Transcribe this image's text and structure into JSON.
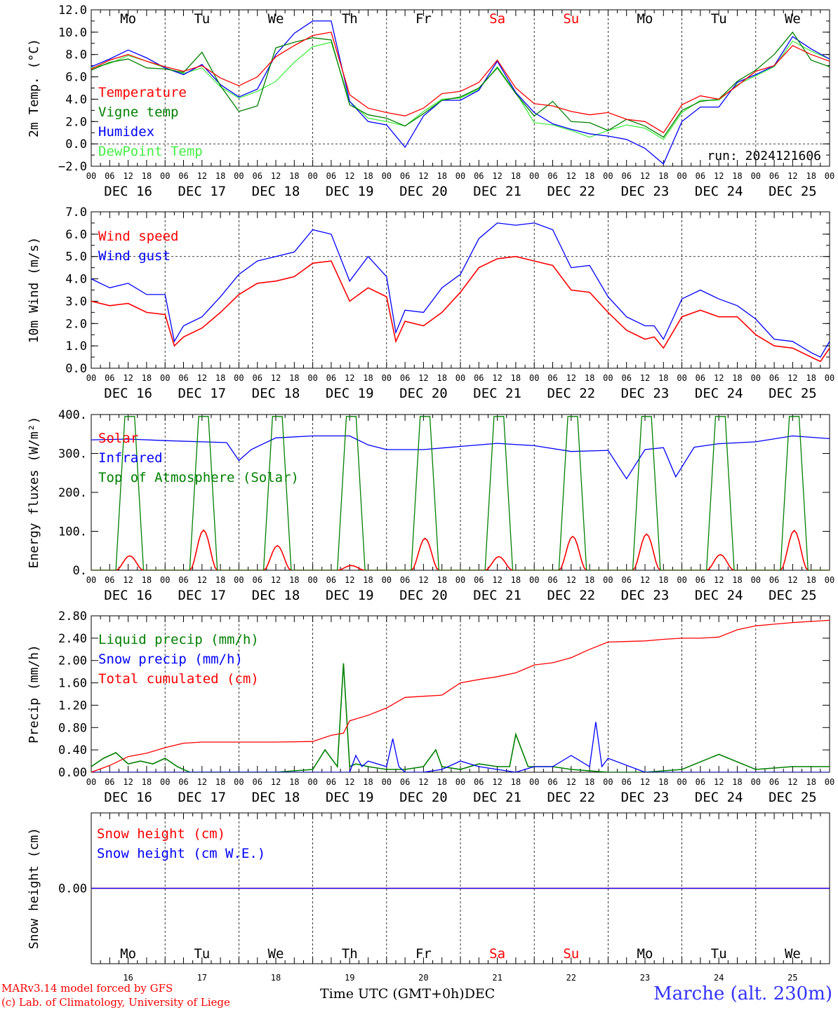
{
  "day_abbrevs": [
    "Mo",
    "Tu",
    "We",
    "Th",
    "Fr",
    "Sa",
    "Su",
    "Mo",
    "Tu",
    "We"
  ],
  "day_colors": [
    "#000000",
    "#000000",
    "#000000",
    "#000000",
    "#000000",
    "#ff0000",
    "#ff0000",
    "#000000",
    "#000000",
    "#000000"
  ],
  "date_labels": [
    "DEC 16",
    "DEC 17",
    "DEC 18",
    "DEC 19",
    "DEC 20",
    "DEC 21",
    "DEC 22",
    "DEC 23",
    "DEC 24",
    "DEC 25"
  ],
  "day_numbers": [
    "16",
    "17",
    "18",
    "19",
    "20",
    "21",
    "22",
    "23",
    "24",
    "25"
  ],
  "hour_ticks": [
    "00",
    "06",
    "12",
    "18"
  ],
  "last_hour_tick": "00",
  "run_label": "run: 2024121606",
  "footer": {
    "model": "MARv3.14 model forced by GFS",
    "credit": "(c) Lab. of Climatology, University of Liege",
    "time_axis": "Time UTC (GMT+0h)",
    "month": "DEC",
    "station": "Marche (alt. 230m)"
  },
  "chart_data": [
    {
      "type": "line",
      "ylabel": "2m Temp. (°C)",
      "ylim": [
        -2,
        12
      ],
      "yticks": [
        "12.0",
        "10.0",
        "8.0",
        "6.0",
        "4.0",
        "2.0",
        "0.0",
        "−2.0"
      ],
      "ytick_values": [
        12,
        10,
        8,
        6,
        4,
        2,
        0,
        -2
      ],
      "reference_line": 0,
      "x_unit": "hours since DEC 16 00 UTC",
      "xlim": [
        0,
        240
      ],
      "series": [
        {
          "name": "Temperature",
          "color": "#ff0000",
          "x": [
            0,
            6,
            12,
            18,
            24,
            30,
            36,
            42,
            48,
            54,
            60,
            66,
            72,
            78,
            84,
            90,
            96,
            102,
            108,
            114,
            120,
            126,
            132,
            138,
            144,
            150,
            156,
            162,
            168,
            174,
            180,
            186,
            192,
            198,
            204,
            210,
            216,
            222,
            228,
            234,
            240
          ],
          "values": [
            6.7,
            7.5,
            8.0,
            7.4,
            6.9,
            6.5,
            7.0,
            5.9,
            5.2,
            6.0,
            7.8,
            8.8,
            9.7,
            10.0,
            4.4,
            3.2,
            2.8,
            2.5,
            3.2,
            4.5,
            4.7,
            5.5,
            7.5,
            5.0,
            3.6,
            3.4,
            2.9,
            2.6,
            2.8,
            2.2,
            2.0,
            1.0,
            3.5,
            4.3,
            4.0,
            5.2,
            6.5,
            7.0,
            8.8,
            8.0,
            7.4
          ]
        },
        {
          "name": "Vigne temp",
          "color": "#008000",
          "x": [
            0,
            6,
            12,
            18,
            24,
            30,
            36,
            42,
            48,
            54,
            60,
            66,
            72,
            78,
            84,
            90,
            96,
            102,
            108,
            114,
            120,
            126,
            132,
            138,
            144,
            150,
            156,
            162,
            168,
            174,
            180,
            186,
            192,
            198,
            204,
            210,
            216,
            222,
            228,
            234,
            240
          ],
          "values": [
            6.6,
            7.3,
            7.6,
            6.8,
            6.7,
            6.4,
            8.2,
            5.2,
            2.9,
            3.4,
            8.6,
            9.1,
            9.5,
            9.3,
            3.5,
            2.6,
            2.3,
            1.6,
            2.7,
            3.9,
            4.2,
            5.0,
            6.8,
            4.5,
            2.5,
            3.8,
            2.0,
            1.9,
            1.2,
            2.2,
            1.6,
            0.6,
            3.0,
            3.8,
            4.0,
            5.6,
            6.6,
            8.0,
            10.0,
            7.5,
            6.9
          ]
        },
        {
          "name": "Humidex",
          "color": "#0000ff",
          "x": [
            0,
            6,
            12,
            18,
            24,
            30,
            36,
            42,
            48,
            54,
            60,
            66,
            72,
            78,
            84,
            90,
            96,
            102,
            108,
            114,
            120,
            126,
            132,
            138,
            144,
            150,
            156,
            162,
            168,
            174,
            180,
            186,
            192,
            198,
            204,
            210,
            216,
            222,
            228,
            234,
            240
          ],
          "values": [
            6.9,
            7.6,
            8.4,
            7.7,
            6.8,
            6.2,
            7.1,
            5.3,
            4.2,
            4.9,
            8.0,
            9.9,
            11.0,
            11.0,
            3.8,
            2.0,
            1.7,
            -0.3,
            2.5,
            3.9,
            3.9,
            4.8,
            7.4,
            4.6,
            2.8,
            1.8,
            1.3,
            0.9,
            0.7,
            0.4,
            -0.4,
            -1.8,
            2.0,
            3.3,
            3.3,
            5.5,
            6.2,
            7.0,
            9.6,
            8.5,
            7.6
          ]
        },
        {
          "name": "DewPoint Temp",
          "color": "#44ee44",
          "x": [
            0,
            6,
            12,
            18,
            24,
            30,
            36,
            42,
            48,
            54,
            60,
            66,
            72,
            78,
            84,
            90,
            96,
            102,
            108,
            114,
            120,
            126,
            132,
            138,
            144,
            150,
            156,
            162,
            168,
            174,
            180,
            186,
            192,
            198,
            204,
            210,
            216,
            222,
            228,
            234,
            240
          ],
          "values": [
            6.8,
            7.2,
            7.9,
            7.4,
            6.8,
            6.3,
            6.8,
            5.1,
            4.1,
            4.7,
            5.6,
            7.3,
            8.7,
            9.1,
            3.8,
            2.3,
            2.0,
            1.6,
            2.9,
            4.0,
            4.1,
            4.9,
            6.9,
            4.6,
            1.9,
            1.7,
            1.2,
            0.6,
            1.2,
            1.7,
            1.4,
            0.4,
            2.8,
            3.9,
            3.9,
            5.3,
            6.1,
            6.9,
            9.2,
            8.3,
            7.6
          ]
        }
      ]
    },
    {
      "type": "line",
      "ylabel": "10m Wind (m/s)",
      "ylim": [
        0,
        7
      ],
      "yticks": [
        "7.0",
        "6.0",
        "5.0",
        "4.0",
        "3.0",
        "2.0",
        "1.0",
        "0.0"
      ],
      "ytick_values": [
        7,
        6,
        5,
        4,
        3,
        2,
        1,
        0
      ],
      "reference_line": 5,
      "x_unit": "hours since DEC 16 00 UTC",
      "xlim": [
        0,
        240
      ],
      "series": [
        {
          "name": "Wind speed",
          "color": "#ff0000",
          "x": [
            0,
            6,
            12,
            18,
            24,
            27,
            30,
            36,
            42,
            48,
            54,
            60,
            66,
            72,
            78,
            84,
            90,
            96,
            99,
            102,
            108,
            114,
            120,
            126,
            132,
            138,
            144,
            150,
            156,
            162,
            168,
            174,
            180,
            183,
            186,
            192,
            198,
            204,
            210,
            216,
            222,
            228,
            234,
            237,
            240
          ],
          "values": [
            3.0,
            2.8,
            2.9,
            2.5,
            2.4,
            1.0,
            1.4,
            1.8,
            2.5,
            3.3,
            3.8,
            3.9,
            4.1,
            4.7,
            4.8,
            3.0,
            3.6,
            3.2,
            1.2,
            2.1,
            1.9,
            2.5,
            3.4,
            4.5,
            4.9,
            5.0,
            4.8,
            4.6,
            3.5,
            3.4,
            2.5,
            1.7,
            1.3,
            1.4,
            0.9,
            2.3,
            2.6,
            2.3,
            2.3,
            1.5,
            1.0,
            0.9,
            0.5,
            0.3,
            0.9
          ]
        },
        {
          "name": "Wind gust",
          "color": "#0000ff",
          "x": [
            0,
            6,
            12,
            18,
            24,
            27,
            30,
            36,
            42,
            48,
            54,
            60,
            66,
            72,
            78,
            84,
            90,
            96,
            99,
            102,
            108,
            114,
            120,
            126,
            132,
            138,
            144,
            150,
            156,
            162,
            168,
            174,
            180,
            183,
            186,
            192,
            198,
            204,
            210,
            216,
            222,
            228,
            234,
            237,
            240
          ],
          "values": [
            4.0,
            3.6,
            3.8,
            3.3,
            3.3,
            1.2,
            1.9,
            2.3,
            3.2,
            4.2,
            4.8,
            5.0,
            5.2,
            6.2,
            6.0,
            3.9,
            5.0,
            4.1,
            1.6,
            2.6,
            2.5,
            3.6,
            4.2,
            5.8,
            6.5,
            6.4,
            6.5,
            6.2,
            4.5,
            4.6,
            3.2,
            2.3,
            1.9,
            1.9,
            1.3,
            3.1,
            3.5,
            3.1,
            2.8,
            2.2,
            1.3,
            1.2,
            0.7,
            0.5,
            1.2
          ]
        }
      ]
    },
    {
      "type": "line",
      "ylabel": "Energy fluxes (W/m²)",
      "ylim": [
        0,
        400
      ],
      "yticks": [
        "400.",
        "300.",
        "200.",
        "100.",
        "0."
      ],
      "ytick_values": [
        400,
        300,
        200,
        100,
        0
      ],
      "x_unit": "hours since DEC 16 00 UTC",
      "xlim": [
        0,
        240
      ],
      "series": [
        {
          "name": "Solar",
          "color": "#ff0000",
          "peak_hour": 12.5,
          "half_width_hours": 4.5,
          "daily_peaks": [
            37,
            103,
            63,
            12,
            82,
            35,
            87,
            93,
            40,
            102
          ]
        },
        {
          "name": "Infrared",
          "color": "#0000ff",
          "x": [
            0,
            12,
            24,
            36,
            44,
            48,
            52,
            56,
            60,
            72,
            84,
            90,
            96,
            108,
            120,
            132,
            144,
            156,
            168,
            174,
            180,
            186,
            190,
            196,
            204,
            216,
            228,
            240
          ],
          "values": [
            335,
            337,
            333,
            330,
            328,
            282,
            310,
            325,
            340,
            345,
            345,
            322,
            310,
            310,
            318,
            326,
            320,
            305,
            308,
            235,
            310,
            315,
            240,
            316,
            325,
            330,
            345,
            338
          ]
        },
        {
          "name": "Top of Atmosphere (Solar)",
          "color": "#008000",
          "peak_hour": 12.5,
          "half_width_hours": 4.5,
          "daily_peaks": [
            395,
            395,
            395,
            395,
            395,
            395,
            395,
            395,
            395,
            395
          ]
        }
      ]
    },
    {
      "type": "line",
      "ylabel": "Precip (mm/h)",
      "ylim": [
        0,
        2.8
      ],
      "yticks": [
        "2.80",
        "2.40",
        "2.00",
        "1.60",
        "1.20",
        "0.80",
        "0.40",
        "0.00"
      ],
      "ytick_values": [
        2.8,
        2.4,
        2.0,
        1.6,
        1.2,
        0.8,
        0.4,
        0.0
      ],
      "x_unit": "hours since DEC 16 00 UTC",
      "xlim": [
        0,
        240
      ],
      "series": [
        {
          "name": "Liquid precip (mm/h)",
          "color": "#008000",
          "x": [
            0,
            4,
            8,
            12,
            16,
            20,
            24,
            28,
            32,
            36,
            48,
            60,
            72,
            76,
            80,
            82,
            84,
            86,
            90,
            96,
            102,
            108,
            112,
            114,
            120,
            126,
            132,
            136,
            138,
            142,
            150,
            156,
            168,
            180,
            192,
            204,
            216,
            228,
            240
          ],
          "values": [
            0.1,
            0.25,
            0.35,
            0.15,
            0.2,
            0.15,
            0.25,
            0.1,
            0.0,
            0.0,
            0.0,
            0.0,
            0.05,
            0.4,
            0.1,
            1.95,
            0.1,
            0.15,
            0.1,
            0.05,
            0.05,
            0.1,
            0.4,
            0.1,
            0.05,
            0.15,
            0.1,
            0.1,
            0.68,
            0.1,
            0.1,
            0.05,
            0.0,
            0.0,
            0.05,
            0.32,
            0.05,
            0.1,
            0.1
          ]
        },
        {
          "name": "Snow precip (mm/h)",
          "color": "#0000ff",
          "x": [
            0,
            72,
            84,
            86,
            88,
            90,
            96,
            98,
            100,
            102,
            108,
            114,
            120,
            126,
            132,
            138,
            144,
            150,
            156,
            162,
            164,
            166,
            168,
            180,
            240
          ],
          "values": [
            0.0,
            0.0,
            0.0,
            0.3,
            0.1,
            0.2,
            0.1,
            0.6,
            0.1,
            0.0,
            0.0,
            0.05,
            0.2,
            0.1,
            0.05,
            0.0,
            0.1,
            0.1,
            0.3,
            0.1,
            0.9,
            0.1,
            0.25,
            0.0,
            0.0
          ]
        },
        {
          "name": "Total cumulated (cm)",
          "color": "#ff0000",
          "x": [
            0,
            6,
            12,
            18,
            24,
            30,
            36,
            48,
            60,
            72,
            78,
            82,
            84,
            90,
            96,
            102,
            108,
            114,
            120,
            126,
            132,
            138,
            144,
            150,
            156,
            162,
            168,
            180,
            186,
            192,
            198,
            204,
            210,
            216,
            222,
            228,
            234,
            240
          ],
          "values": [
            0.0,
            0.12,
            0.28,
            0.34,
            0.44,
            0.52,
            0.54,
            0.54,
            0.54,
            0.55,
            0.66,
            0.7,
            0.92,
            1.02,
            1.15,
            1.34,
            1.36,
            1.38,
            1.6,
            1.66,
            1.71,
            1.78,
            1.92,
            1.96,
            2.05,
            2.2,
            2.33,
            2.35,
            2.38,
            2.4,
            2.4,
            2.42,
            2.55,
            2.62,
            2.65,
            2.68,
            2.7,
            2.72
          ]
        }
      ]
    },
    {
      "type": "line",
      "ylabel": "Snow height (cm)",
      "ylim": [
        -1,
        1
      ],
      "yticks": [
        "0.00"
      ],
      "ytick_values": [
        0
      ],
      "x_unit": "hours since DEC 16 00 UTC",
      "xlim": [
        0,
        240
      ],
      "series": [
        {
          "name": "Snow height (cm)",
          "color": "#ff0000",
          "x": [
            0,
            240
          ],
          "values": [
            0,
            0
          ]
        },
        {
          "name": "Snow height (cm W.E.)",
          "color": "#0000ff",
          "x": [
            0,
            240
          ],
          "values": [
            0,
            0
          ]
        }
      ]
    }
  ]
}
